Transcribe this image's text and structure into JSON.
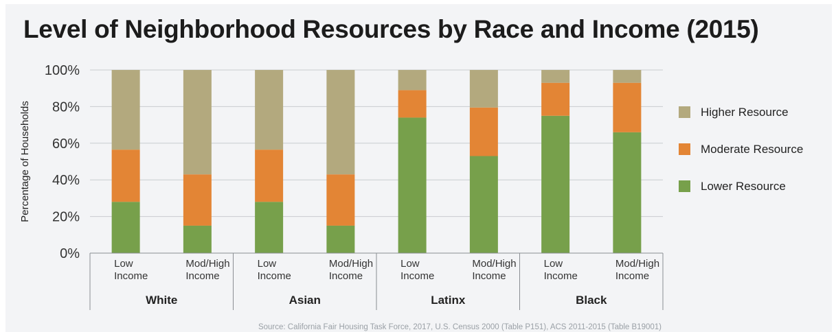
{
  "chart_data": {
    "type": "bar",
    "stacked": true,
    "title": "Level of Neighborhood Resources by Race and Income (2015)",
    "ylabel": "Percentage of Households",
    "ylim": [
      0,
      100
    ],
    "yticks": [
      "0%",
      "20%",
      "40%",
      "60%",
      "80%",
      "100%"
    ],
    "grid": true,
    "legend_position": "right",
    "groups": [
      "White",
      "Asian",
      "Latinx",
      "Black"
    ],
    "categories": [
      {
        "group": "White",
        "line1": "Low",
        "line2": "Income"
      },
      {
        "group": "White",
        "line1": "Mod/High",
        "line2": "Income"
      },
      {
        "group": "Asian",
        "line1": "Low",
        "line2": "Income"
      },
      {
        "group": "Asian",
        "line1": "Mod/High",
        "line2": "Income"
      },
      {
        "group": "Latinx",
        "line1": "Low",
        "line2": "Income"
      },
      {
        "group": "Latinx",
        "line1": "Mod/High",
        "line2": "Income"
      },
      {
        "group": "Black",
        "line1": "Low",
        "line2": "Income"
      },
      {
        "group": "Black",
        "line1": "Mod/High",
        "line2": "Income"
      }
    ],
    "series": [
      {
        "name": "Lower Resource",
        "color": "#77a04b",
        "values": [
          28,
          15,
          28,
          15,
          74,
          53,
          75,
          66
        ]
      },
      {
        "name": "Moderate Resource",
        "color": "#e38535",
        "values": [
          28.5,
          28,
          28.5,
          28,
          15,
          26.5,
          18,
          27
        ]
      },
      {
        "name": "Higher Resource",
        "color": "#b3a97e",
        "values": [
          43.5,
          57,
          43.5,
          57,
          11,
          20.5,
          7,
          7
        ]
      }
    ],
    "legend_order": [
      "Higher Resource",
      "Moderate Resource",
      "Lower Resource"
    ],
    "source": "Source: California Fair Housing Task Force, 2017, U.S. Census 2000 (Table P151), ACS 2011-2015 (Table B19001)"
  }
}
